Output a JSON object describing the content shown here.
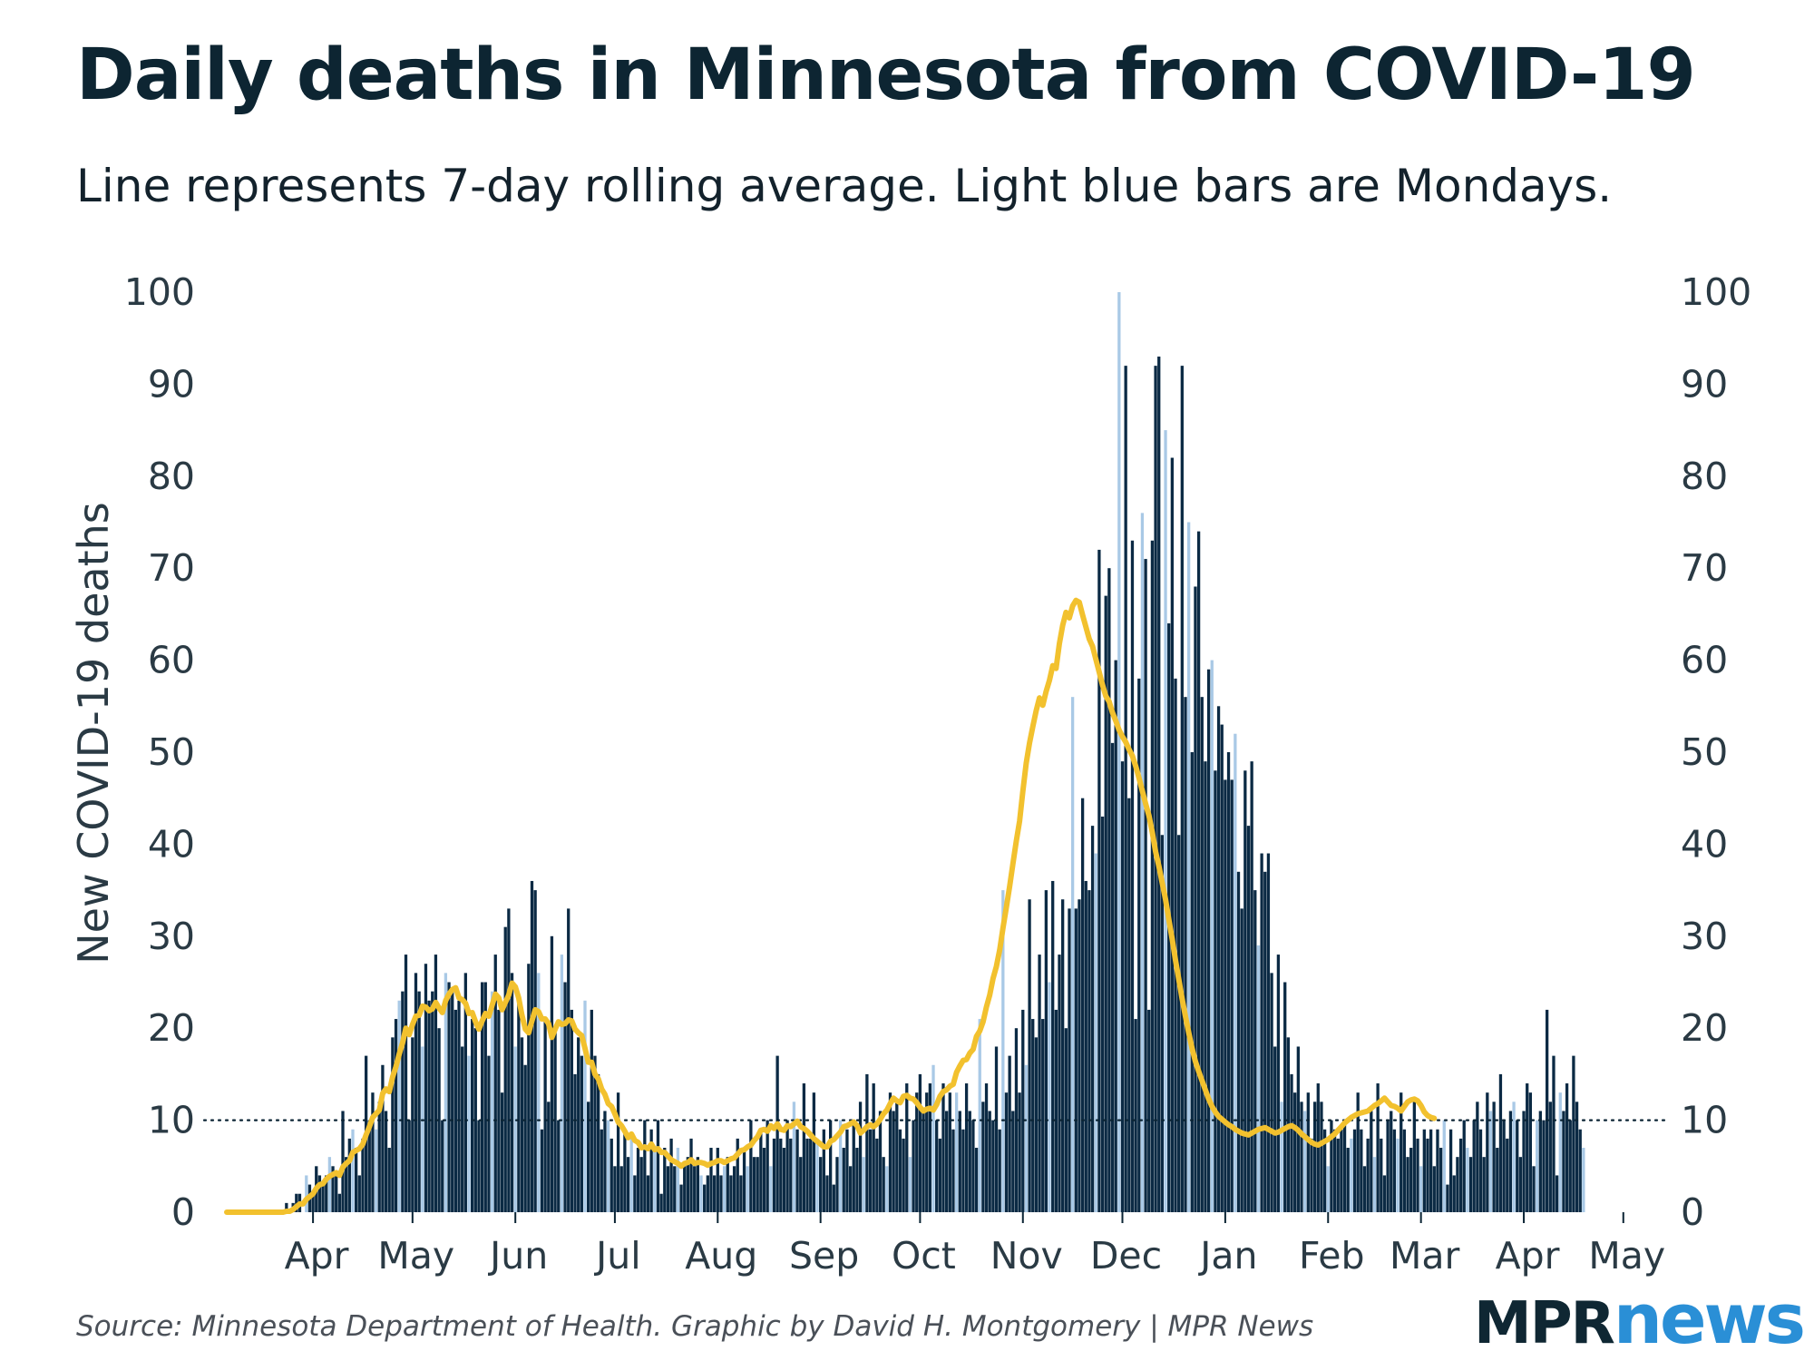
{
  "header": {
    "title": "Daily deaths in Minnesota from COVID-19",
    "subtitle": "Line represents 7-day rolling average. Light blue bars are Mondays."
  },
  "footer": {
    "source": "Source: Minnesota Department of Health. Graphic by David H. Montgomery | MPR News",
    "logo_mpr": "MPR",
    "logo_news": "news"
  },
  "colors": {
    "bar": "#0b2a44",
    "monday_bar": "#a9c9e6",
    "line": "#f2c12e",
    "reference_line": "#0b2434",
    "brand_dark": "#0f2733",
    "brand_blue": "#2a8fd6"
  },
  "chart_data": {
    "type": "bar",
    "title": "Daily deaths in Minnesota from COVID-19",
    "subtitle": "Line represents 7-day rolling average. Light blue bars are Mondays.",
    "ylabel": "New COVID-19 deaths",
    "ylim": [
      0,
      100
    ],
    "yticks": [
      0,
      10,
      20,
      30,
      40,
      50,
      60,
      70,
      80,
      90,
      100
    ],
    "y_axes": "left-and-right",
    "reference_line": {
      "y": 10,
      "style": "dotted"
    },
    "x_start_date": "2020-03-06",
    "xlim": [
      "2020-03-06",
      "2021-05-12"
    ],
    "xticks": [
      {
        "label": "Apr",
        "date": "2020-04-01"
      },
      {
        "label": "May",
        "date": "2020-05-01"
      },
      {
        "label": "Jun",
        "date": "2020-06-01"
      },
      {
        "label": "Jul",
        "date": "2020-07-01"
      },
      {
        "label": "Aug",
        "date": "2020-08-01"
      },
      {
        "label": "Sep",
        "date": "2020-09-01"
      },
      {
        "label": "Oct",
        "date": "2020-10-01"
      },
      {
        "label": "Nov",
        "date": "2020-11-01"
      },
      {
        "label": "Dec",
        "date": "2020-12-01"
      },
      {
        "label": "Jan",
        "date": "2021-01-01"
      },
      {
        "label": "Feb",
        "date": "2021-02-01"
      },
      {
        "label": "Mar",
        "date": "2021-03-01"
      },
      {
        "label": "Apr",
        "date": "2021-04-01"
      },
      {
        "label": "May",
        "date": "2021-05-01"
      }
    ],
    "series": [
      {
        "name": "Daily deaths",
        "kind": "bar",
        "note": "one value per day starting 2020-03-06; Mondays shown in light blue",
        "values": [
          0,
          0,
          0,
          0,
          0,
          0,
          0,
          0,
          0,
          0,
          0,
          0,
          0,
          0,
          0,
          0,
          0,
          0,
          1,
          0,
          1,
          2,
          2,
          0,
          4,
          3,
          2,
          5,
          4,
          3,
          4,
          6,
          5,
          4,
          2,
          11,
          6,
          8,
          9,
          7,
          4,
          8,
          17,
          10,
          13,
          9,
          12,
          16,
          11,
          7,
          19,
          21,
          23,
          24,
          28,
          10,
          19,
          26,
          24,
          18,
          27,
          23,
          24,
          28,
          20,
          10,
          26,
          25,
          24,
          22,
          23,
          18,
          26,
          17,
          21,
          20,
          10,
          25,
          25,
          17,
          24,
          28,
          22,
          13,
          31,
          33,
          26,
          18,
          23,
          19,
          16,
          27,
          36,
          35,
          26,
          9,
          21,
          12,
          30,
          20,
          10,
          28,
          25,
          33,
          22,
          15,
          19,
          17,
          23,
          12,
          22,
          17,
          15,
          9,
          11,
          10,
          8,
          5,
          13,
          5,
          9,
          6,
          8,
          4,
          7,
          6,
          10,
          4,
          9,
          7,
          10,
          2,
          7,
          5,
          8,
          5,
          7,
          3,
          5,
          6,
          8,
          5,
          6,
          4,
          3,
          4,
          7,
          4,
          7,
          4,
          5,
          6,
          4,
          5,
          8,
          4,
          7,
          5,
          10,
          6,
          6,
          9,
          7,
          10,
          5,
          8,
          17,
          8,
          7,
          10,
          8,
          12,
          9,
          6,
          14,
          8,
          8,
          13,
          8,
          6,
          9,
          4,
          10,
          3,
          6,
          10,
          7,
          9,
          5,
          10,
          7,
          12,
          6,
          15,
          9,
          14,
          8,
          11,
          6,
          5,
          13,
          11,
          12,
          9,
          8,
          14,
          6,
          10,
          13,
          15,
          11,
          13,
          14,
          16,
          10,
          8,
          14,
          11,
          13,
          9,
          13,
          11,
          9,
          14,
          11,
          10,
          7,
          21,
          12,
          14,
          11,
          10,
          18,
          9,
          35,
          13,
          17,
          11,
          20,
          13,
          22,
          16,
          34,
          21,
          19,
          28,
          21,
          35,
          25,
          36,
          22,
          28,
          34,
          20,
          33,
          56,
          33,
          34,
          45,
          36,
          35,
          42,
          39,
          72,
          43,
          67,
          70,
          51,
          60,
          100,
          49,
          92,
          45,
          73,
          21,
          58,
          76,
          71,
          22,
          73,
          92,
          93,
          41,
          85,
          64,
          82,
          58,
          41,
          92,
          56,
          75,
          50,
          68,
          74,
          56,
          49,
          59,
          60,
          48,
          55,
          53,
          47,
          50,
          47,
          52,
          37,
          33,
          48,
          42,
          49,
          35,
          29,
          39,
          37,
          39,
          26,
          18,
          28,
          12,
          25,
          19,
          15,
          13,
          18,
          12,
          11,
          13,
          8,
          12,
          14,
          12,
          9,
          5,
          10,
          9,
          8,
          9,
          10,
          7,
          8,
          9,
          13,
          9,
          5,
          8,
          11,
          6,
          14,
          8,
          4,
          10,
          11,
          9,
          8,
          13,
          9,
          6,
          7,
          12,
          8,
          5,
          9,
          8,
          9,
          5,
          9,
          7,
          10,
          3,
          9,
          4,
          6,
          8,
          10,
          7,
          6,
          10,
          12,
          9,
          6,
          13,
          11,
          12,
          7,
          15,
          10,
          8,
          11,
          12,
          10,
          6,
          11,
          14,
          13,
          5,
          10,
          11,
          10,
          22,
          12,
          17,
          4,
          13,
          11,
          14,
          10,
          17,
          12,
          9,
          7
        ]
      },
      {
        "name": "7-day rolling average",
        "kind": "line",
        "values": [
          0,
          0,
          0,
          0,
          0,
          0,
          0,
          0,
          0,
          0,
          0,
          0,
          0,
          0,
          0,
          0,
          0,
          0,
          0.1,
          0.1,
          0.3,
          0.6,
          0.9,
          0.9,
          1.4,
          1.7,
          2.0,
          2.6,
          3.0,
          3.1,
          3.6,
          3.9,
          4.1,
          4.3,
          4.0,
          4.9,
          5.3,
          5.6,
          6.5,
          6.7,
          6.9,
          7.4,
          8.4,
          9.3,
          10.3,
          10.7,
          11.1,
          12.9,
          13.4,
          13.1,
          14.7,
          15.8,
          17.2,
          18.4,
          20.0,
          19.3,
          20.4,
          21.3,
          21.4,
          22.4,
          22.3,
          21.9,
          22.1,
          22.8,
          22.2,
          21.7,
          23.0,
          23.7,
          24.2,
          24.4,
          23.3,
          23.1,
          22.7,
          21.6,
          21.7,
          20.7,
          19.9,
          20.8,
          21.6,
          21.3,
          22.5,
          23.7,
          23.3,
          22.0,
          22.8,
          23.6,
          24.9,
          24.5,
          23.3,
          21.4,
          19.9,
          19.5,
          20.8,
          22.0,
          21.8,
          21.0,
          21.0,
          20.5,
          19.0,
          19.9,
          20.7,
          20.4,
          20.5,
          20.9,
          20.8,
          19.9,
          19.5,
          19.2,
          17.8,
          16.3,
          16.3,
          15.0,
          14.5,
          13.4,
          12.8,
          11.8,
          11.5,
          10.7,
          9.8,
          9.4,
          8.8,
          8.1,
          8.5,
          7.8,
          7.6,
          7.0,
          7.1,
          6.9,
          7.4,
          6.8,
          6.9,
          6.5,
          6.5,
          6.1,
          5.7,
          5.5,
          5.3,
          5.0,
          5.3,
          5.4,
          5.7,
          5.3,
          5.4,
          5.4,
          5.3,
          5.1,
          5.3,
          5.4,
          5.6,
          5.6,
          5.4,
          5.6,
          5.8,
          5.9,
          6.3,
          6.7,
          6.8,
          7.1,
          7.3,
          7.8,
          8.2,
          8.9,
          9.0,
          8.8,
          9.4,
          9.1,
          9.6,
          9.0,
          8.9,
          9.4,
          9.3,
          9.6,
          9.9,
          9.3,
          9.1,
          8.8,
          8.4,
          8.0,
          7.7,
          7.4,
          7.1,
          7.1,
          7.7,
          7.9,
          8.3,
          8.7,
          9.3,
          9.4,
          9.6,
          9.8,
          9.4,
          8.6,
          8.9,
          9.3,
          9.5,
          9.3,
          9.6,
          10.1,
          10.7,
          11.1,
          11.8,
          12.4,
          12.1,
          11.9,
          12.6,
          12.7,
          12.4,
          12.3,
          11.9,
          11.4,
          11.0,
          11.2,
          11.3,
          11.1,
          11.7,
          12.6,
          13.1,
          13.3,
          13.7,
          13.9,
          15.2,
          15.9,
          16.5,
          16.6,
          17.3,
          17.7,
          19.1,
          19.7,
          20.7,
          22.3,
          23.6,
          25.4,
          26.7,
          28.5,
          30.9,
          33.1,
          35.4,
          37.9,
          40.3,
          42.5,
          45.8,
          48.8,
          51.0,
          52.8,
          54.5,
          55.9,
          55.1,
          56.6,
          57.8,
          59.4,
          59.1,
          61.8,
          63.8,
          65.2,
          64.6,
          65.9,
          66.5,
          66.3,
          64.9,
          63.6,
          62.3,
          61.5,
          60.1,
          58.7,
          57.3,
          56.1,
          55.5,
          54.3,
          53.4,
          52.4,
          51.7,
          51.1,
          50.3,
          49.6,
          48.5,
          47.2,
          45.8,
          44.4,
          43.1,
          41.3,
          39.2,
          37.6,
          35.8,
          34.0,
          31.8,
          29.7,
          27.4,
          25.3,
          23.2,
          21.3,
          19.5,
          17.8,
          16.4,
          15.3,
          14.3,
          13.3,
          12.3,
          11.5,
          10.9,
          10.4,
          10.1,
          9.8,
          9.5,
          9.3,
          9.0,
          8.8,
          8.6,
          8.5,
          8.4,
          8.6,
          8.8,
          9.0,
          9.1,
          9.2,
          9.0,
          8.8,
          8.6,
          8.7,
          8.9,
          9.1,
          9.3,
          9.4,
          9.2,
          8.9,
          8.5,
          8.2,
          7.9,
          7.6,
          7.4,
          7.3,
          7.5,
          7.7,
          7.9,
          8.2,
          8.5,
          8.9,
          9.3,
          9.7,
          10.0,
          10.3,
          10.5,
          10.7,
          10.8,
          10.9,
          11.0,
          11.3,
          11.6,
          11.8,
          12.1,
          12.4,
          12.0,
          11.6,
          11.5,
          11.3,
          11.0,
          11.5,
          12.0,
          12.2,
          12.3,
          12.1,
          11.6,
          10.9,
          10.5,
          10.3,
          10.2
        ]
      }
    ]
  }
}
